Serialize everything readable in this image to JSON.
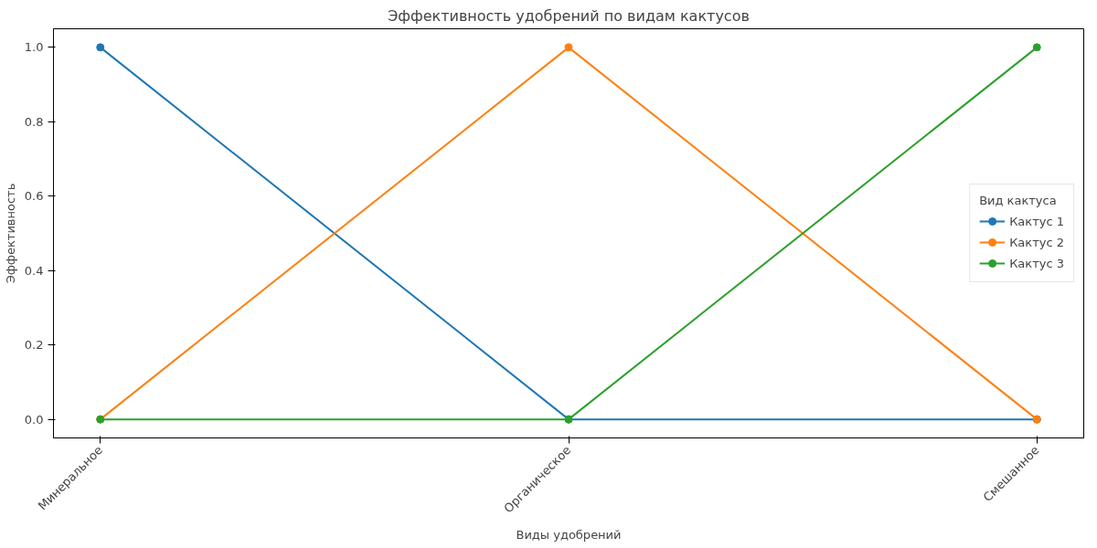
{
  "chart_data": {
    "type": "line",
    "title": "Эффективность удобрений по видам кактусов",
    "xlabel": "Виды удобрений",
    "ylabel": "Эффективность",
    "legend_title": "Вид кактуса",
    "categories": [
      "Минеральное",
      "Органическое",
      "Смешанное"
    ],
    "series": [
      {
        "name": "Кактус 1",
        "color": "#1f77b4",
        "values": [
          1,
          0,
          0
        ]
      },
      {
        "name": "Кактус 2",
        "color": "#ff7f0e",
        "values": [
          0,
          1,
          0
        ]
      },
      {
        "name": "Кактус 3",
        "color": "#2ca02c",
        "values": [
          0,
          0,
          1
        ]
      }
    ],
    "ylim": [
      -0.05,
      1.05
    ],
    "yticks": [
      {
        "value": 0,
        "label": "0.0"
      },
      {
        "value": 0.2,
        "label": "0.2"
      },
      {
        "value": 0.4,
        "label": "0.4"
      },
      {
        "value": 0.6,
        "label": "0.6"
      },
      {
        "value": 0.8,
        "label": "0.8"
      },
      {
        "value": 1.0,
        "label": "1.0"
      }
    ],
    "grid": false,
    "legend": "right",
    "marker": "circle",
    "line_style": "solid"
  }
}
